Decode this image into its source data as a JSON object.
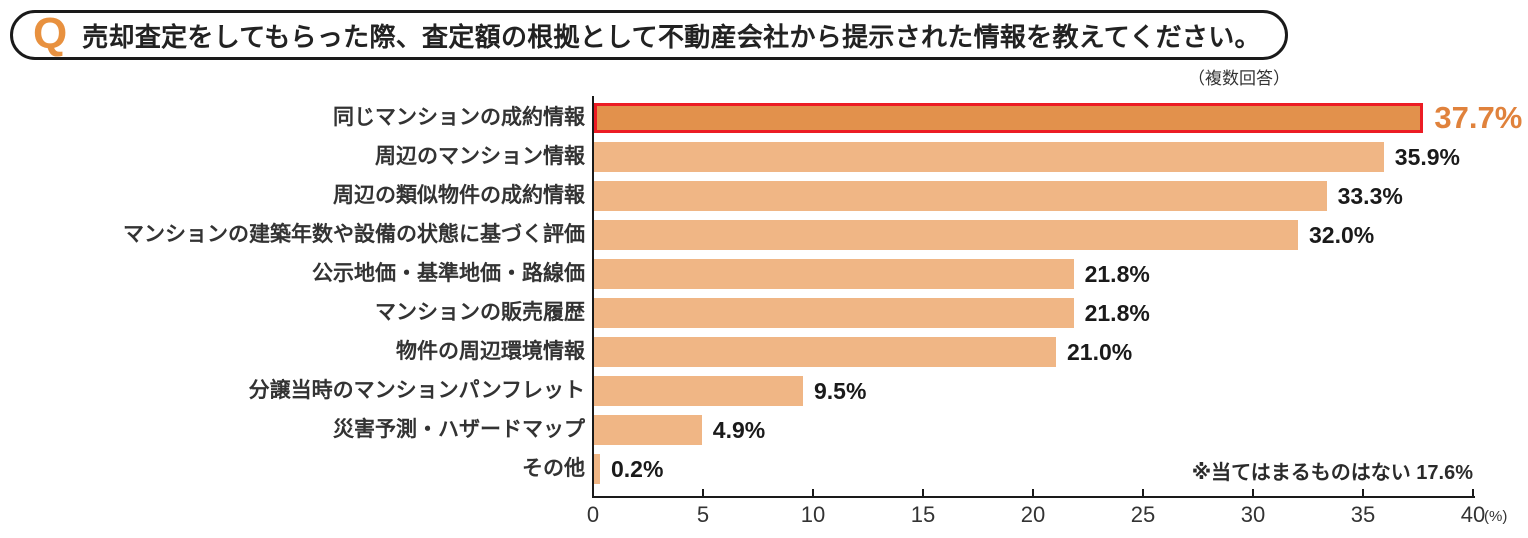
{
  "header": {
    "q_label": "Q",
    "question": "売却査定をしてもらった際、査定額の根拠として不動産会社から提示された情報を教えてください。",
    "note_multi": "（複数回答）"
  },
  "chart_data": {
    "type": "bar",
    "orientation": "horizontal",
    "categories": [
      "同じマンションの成約情報",
      "周辺のマンション情報",
      "周辺の類似物件の成約情報",
      "マンションの建築年数や設備の状態に基づく評価",
      "公示地価・基準地価・路線価",
      "マンションの販売履歴",
      "物件の周辺環境情報",
      "分譲当時のマンションパンフレット",
      "災害予測・ハザードマップ",
      "その他"
    ],
    "values": [
      37.7,
      35.9,
      33.3,
      32.0,
      21.8,
      21.8,
      21.0,
      9.5,
      4.9,
      0.2
    ],
    "value_suffix": "%",
    "xlim": [
      0,
      40
    ],
    "x_ticks": [
      0,
      5,
      10,
      15,
      20,
      25,
      30,
      35,
      40
    ],
    "x_unit": "(%)",
    "footnote": "※当てはまるものはない 17.6%",
    "highlight_index": 0,
    "legend": null,
    "grid": false,
    "colors": {
      "bar": "#F0B685",
      "highlight_bar": "#E2914C",
      "highlight_border": "#EC1C24",
      "highlight_value_text": "#E0823C",
      "q_orange": "#E8913F",
      "axis": "#1A1A1A"
    }
  }
}
